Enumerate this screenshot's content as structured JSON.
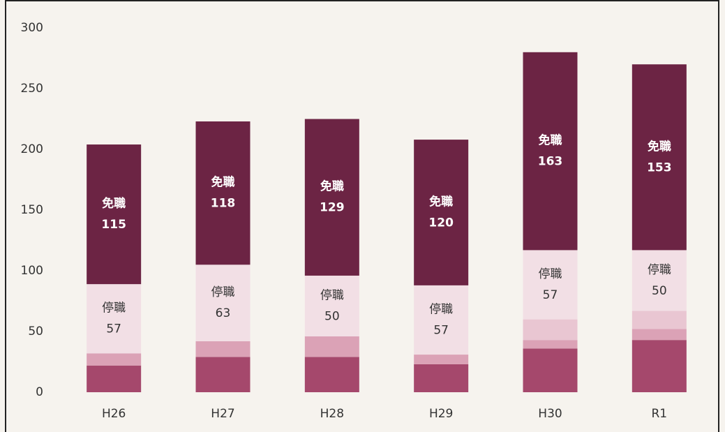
{
  "chart_data": {
    "type": "stacked_bar",
    "categories": [
      "H26",
      "H27",
      "H28",
      "H29",
      "H30",
      "R1"
    ],
    "series": [
      {
        "color": "#a5486c",
        "values": [
          22,
          29,
          29,
          23,
          36,
          43
        ]
      },
      {
        "color": "#dba2b6",
        "values": [
          10,
          13,
          17,
          8,
          7,
          9
        ]
      },
      {
        "color": "#e9c6d2",
        "values": [
          0,
          0,
          0,
          0,
          17,
          15
        ]
      },
      {
        "name": "停職",
        "color": "#f2dfe5",
        "values": [
          57,
          63,
          50,
          57,
          57,
          50
        ]
      },
      {
        "name": "免職",
        "color": "#6c2444",
        "values": [
          115,
          118,
          129,
          120,
          163,
          153
        ]
      }
    ],
    "ylim": [
      0,
      300
    ],
    "yticks": [
      0,
      50,
      100,
      150,
      200,
      250,
      300
    ]
  }
}
